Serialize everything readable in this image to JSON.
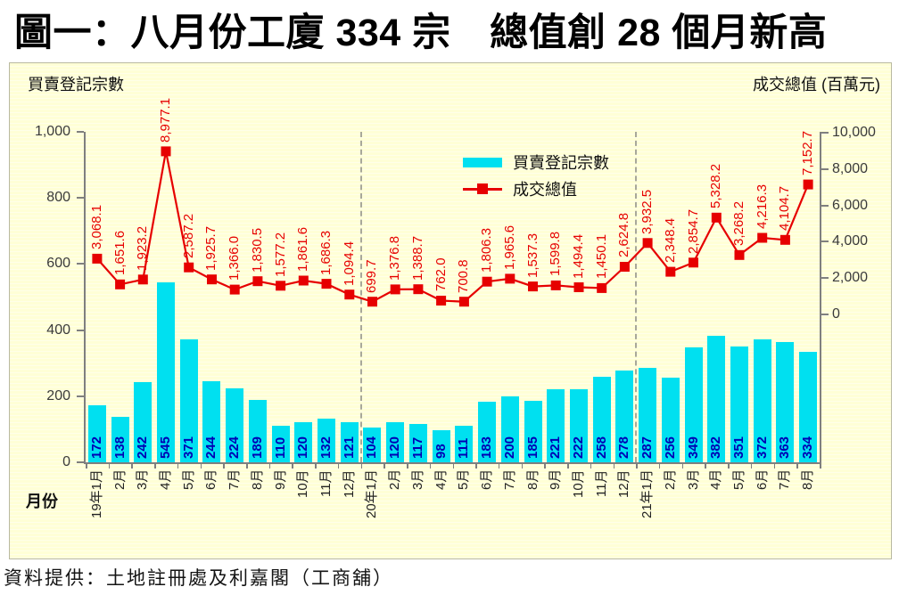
{
  "title": "圖一：八月份工廈 334 宗　總值創 28 個月新高",
  "left_axis_title": "買賣登記宗數",
  "right_axis_title": "成交總值 (百萬元)",
  "x_axis_title": "月份",
  "source": "資料提供：土地註冊處及利嘉閣（工商舖）",
  "legend": {
    "bars": "買賣登記宗數",
    "line": "成交總值"
  },
  "colors": {
    "bar": "#00e0f0",
    "line": "#e60000",
    "bar_label": "#0000b4",
    "background": "#ffffd9",
    "axis": "#7f7f7f"
  },
  "chart_data": {
    "type": "bar",
    "subtype": "bar+line dual-axis combo",
    "categories": [
      "19年1月",
      "2月",
      "3月",
      "4月",
      "5月",
      "6月",
      "7月",
      "8月",
      "9月",
      "10月",
      "11月",
      "12月",
      "20年1月",
      "2月",
      "3月",
      "4月",
      "5月",
      "6月",
      "7月",
      "8月",
      "9月",
      "10月",
      "11月",
      "12月",
      "21年1月",
      "2月",
      "3月",
      "4月",
      "5月",
      "6月",
      "7月",
      "8月"
    ],
    "series": [
      {
        "name": "買賣登記宗數",
        "type": "bar",
        "axis": "left",
        "values": [
          172,
          138,
          242,
          545,
          371,
          244,
          224,
          189,
          110,
          120,
          132,
          121,
          104,
          120,
          117,
          98,
          111,
          183,
          200,
          185,
          221,
          222,
          258,
          278,
          287,
          256,
          349,
          382,
          351,
          372,
          363,
          334
        ]
      },
      {
        "name": "成交總值",
        "type": "line",
        "axis": "right",
        "values": [
          3068.1,
          1651.6,
          1923.2,
          8977.1,
          2587.2,
          1925.7,
          1366.0,
          1830.5,
          1577.2,
          1861.6,
          1686.3,
          1094.4,
          699.7,
          1376.8,
          1388.7,
          762.0,
          700.8,
          1806.3,
          1965.6,
          1537.3,
          1599.8,
          1494.4,
          1450.1,
          2624.8,
          3932.5,
          2348.4,
          2854.7,
          5328.2,
          3268.2,
          4216.3,
          4104.7,
          7152.7
        ],
        "labels": [
          "3,068.1",
          "1,651.6",
          "1,923.2",
          "8,977.1",
          "2,587.2",
          "1,925.7",
          "1,366.0",
          "1,830.5",
          "1,577.2",
          "1,861.6",
          "1,686.3",
          "1,094.4",
          "699.7",
          "1,376.8",
          "1,388.7",
          "762.0",
          "700.8",
          "1,806.3",
          "1,965.6",
          "1,537.3",
          "1,599.8",
          "1,494.4",
          "1,450.1",
          "2,624.8",
          "3,932.5",
          "2,348.4",
          "2,854.7",
          "5,328.2",
          "3,268.2",
          "4,216.3",
          "4,104.7",
          "7,152.7"
        ]
      }
    ],
    "left_axis": {
      "min": 0,
      "max": 1000,
      "step": 200,
      "ticks": [
        "0",
        "200",
        "400",
        "600",
        "800",
        "1,000"
      ]
    },
    "right_axis": {
      "min": 0,
      "max": 10000,
      "step": 2000,
      "ticks": [
        "0",
        "2,000",
        "4,000",
        "6,000",
        "8,000",
        "10,000"
      ]
    },
    "year_separator_boundaries": [
      12,
      24
    ],
    "grid": "off",
    "legend_position": "top-center-inside"
  }
}
